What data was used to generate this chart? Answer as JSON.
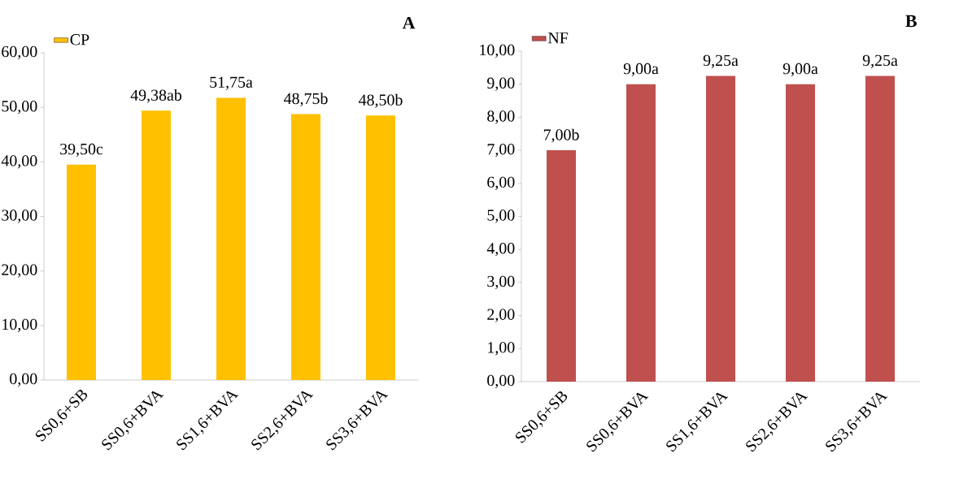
{
  "chart_data": [
    {
      "type": "bar",
      "title": "A",
      "legend": "top left",
      "categories": [
        "SS0,6+SB",
        "SS0,6+BVA",
        "SS1,6+BVA",
        "SS2,6+BVA",
        "SS3,6+BVA"
      ],
      "series": [
        {
          "name": "CP",
          "color": "#ffc000",
          "values": [
            39.5,
            49.38,
            51.75,
            48.75,
            48.5
          ],
          "value_labels": [
            "39,50c",
            "49,38ab",
            "51,75a",
            "48,75b",
            "48,50b"
          ]
        }
      ],
      "ylim": [
        0,
        60
      ],
      "yticks": [
        {
          "value": 0,
          "label": "0,00"
        },
        {
          "value": 10,
          "label": "10,00"
        },
        {
          "value": 20,
          "label": "20,00"
        },
        {
          "value": 30,
          "label": "30,00"
        },
        {
          "value": 40,
          "label": "40,00"
        },
        {
          "value": 50,
          "label": "50,00"
        },
        {
          "value": 60,
          "label": "60,00"
        }
      ]
    },
    {
      "type": "bar",
      "title": "B",
      "legend": "top left",
      "categories": [
        "SS0,6+SB",
        "SS0,6+BVA",
        "SS1,6+BVA",
        "SS2,6+BVA",
        "SS3,6+BVA"
      ],
      "series": [
        {
          "name": "NF",
          "color": "#c0504d",
          "values": [
            7,
            9,
            9.25,
            9,
            9.25
          ],
          "value_labels": [
            "7,00b",
            "9,00a",
            "9,25a",
            "9,00a",
            "9,25a"
          ]
        }
      ],
      "ylim": [
        0,
        10
      ],
      "yticks": [
        {
          "value": 0,
          "label": "0,00"
        },
        {
          "value": 1,
          "label": "1,00"
        },
        {
          "value": 2,
          "label": "2,00"
        },
        {
          "value": 3,
          "label": "3,00"
        },
        {
          "value": 4,
          "label": "4,00"
        },
        {
          "value": 5,
          "label": "5,00"
        },
        {
          "value": 6,
          "label": "6,00"
        },
        {
          "value": 7,
          "label": "7,00"
        },
        {
          "value": 8,
          "label": "8,00"
        },
        {
          "value": 9,
          "label": "9,00"
        },
        {
          "value": 10,
          "label": "10,00"
        }
      ]
    }
  ]
}
